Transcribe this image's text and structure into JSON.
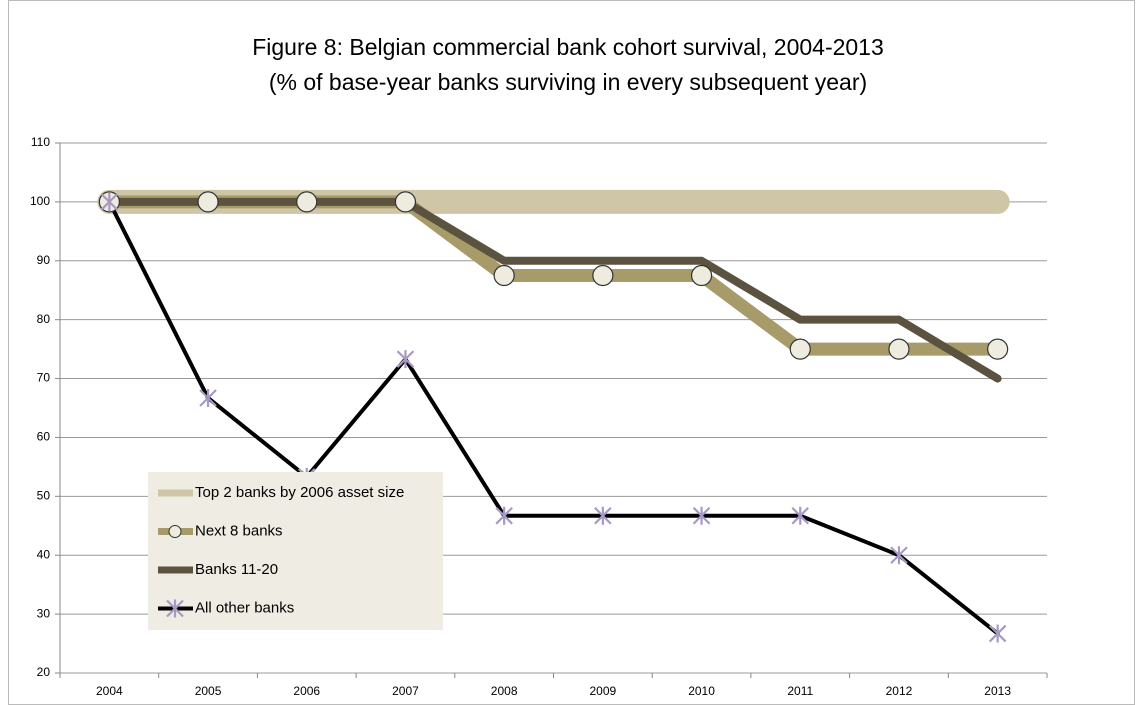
{
  "chart_data": {
    "type": "line",
    "title": "Figure 8: Belgian commercial bank cohort survival, 2004-2013",
    "subtitle": "(% of base-year banks surviving in every subsequent year)",
    "categories": [
      "2004",
      "2005",
      "2006",
      "2007",
      "2008",
      "2009",
      "2010",
      "2011",
      "2012",
      "2013"
    ],
    "series": [
      {
        "name": "Top 2 banks by 2006 asset size",
        "color": "#cec6a6",
        "marker": "none",
        "values": [
          100,
          100,
          100,
          100,
          100,
          100,
          100,
          100,
          100,
          100
        ]
      },
      {
        "name": "Next 8 banks",
        "color": "#a89b6a",
        "marker": "circle",
        "values": [
          100,
          100,
          100,
          100,
          87.5,
          87.5,
          87.5,
          75,
          75,
          75
        ]
      },
      {
        "name": "Banks 11-20",
        "color": "#5b5340",
        "marker": "none",
        "values": [
          100,
          100,
          100,
          100,
          90,
          90,
          90,
          80,
          80,
          70
        ]
      },
      {
        "name": "All other banks",
        "color": "#000000",
        "marker": "x",
        "values": [
          100,
          66.7,
          53.3,
          73.3,
          46.7,
          46.7,
          46.7,
          46.7,
          40,
          26.7
        ]
      }
    ],
    "ylim": [
      20,
      110
    ],
    "yticks": [
      20,
      30,
      40,
      50,
      60,
      70,
      80,
      90,
      100,
      110
    ],
    "grid": true,
    "legend_position": "lower left"
  }
}
